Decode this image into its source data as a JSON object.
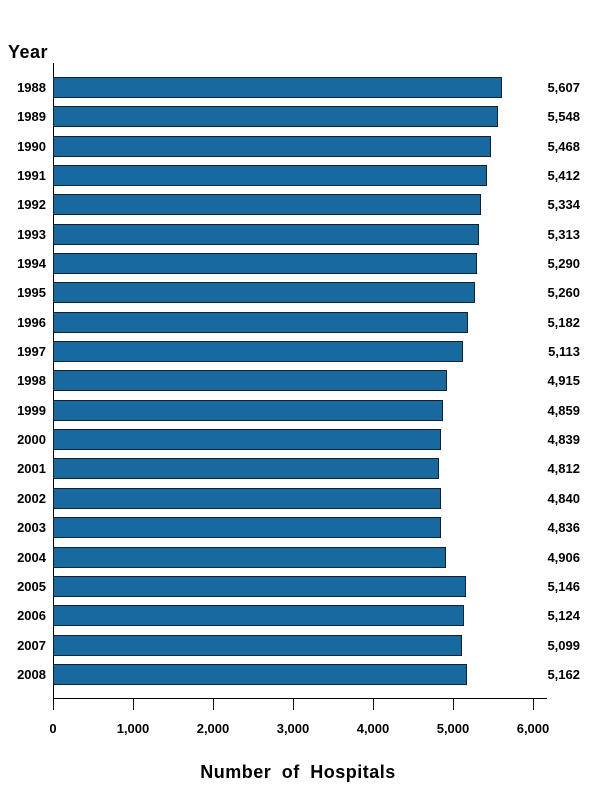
{
  "chart_data": {
    "type": "bar",
    "orientation": "horizontal",
    "y_axis_title": "Year",
    "xlabel": "Number of Hospitals",
    "xlim": [
      0,
      6000
    ],
    "grid": false,
    "legend": "none",
    "bar_color": "#17699E",
    "bar_border_color": "#0C2138",
    "axis_color": "#000000",
    "x_ticks": [
      {
        "value": 0,
        "label": "0"
      },
      {
        "value": 1000,
        "label": "1,000"
      },
      {
        "value": 2000,
        "label": "2,000"
      },
      {
        "value": 3000,
        "label": "3,000"
      },
      {
        "value": 4000,
        "label": "4,000"
      },
      {
        "value": 5000,
        "label": "5,000"
      },
      {
        "value": 6000,
        "label": "6,000"
      }
    ],
    "rows": [
      {
        "year": "1988",
        "value": 5607,
        "label": "5,607"
      },
      {
        "year": "1989",
        "value": 5548,
        "label": "5,548"
      },
      {
        "year": "1990",
        "value": 5468,
        "label": "5,468"
      },
      {
        "year": "1991",
        "value": 5412,
        "label": "5,412"
      },
      {
        "year": "1992",
        "value": 5334,
        "label": "5,334"
      },
      {
        "year": "1993",
        "value": 5313,
        "label": "5,313"
      },
      {
        "year": "1994",
        "value": 5290,
        "label": "5,290"
      },
      {
        "year": "1995",
        "value": 5260,
        "label": "5,260"
      },
      {
        "year": "1996",
        "value": 5182,
        "label": "5,182"
      },
      {
        "year": "1997",
        "value": 5113,
        "label": "5,113"
      },
      {
        "year": "1998",
        "value": 4915,
        "label": "4,915"
      },
      {
        "year": "1999",
        "value": 4859,
        "label": "4,859"
      },
      {
        "year": "2000",
        "value": 4839,
        "label": "4,839"
      },
      {
        "year": "2001",
        "value": 4812,
        "label": "4,812"
      },
      {
        "year": "2002",
        "value": 4840,
        "label": "4,840"
      },
      {
        "year": "2003",
        "value": 4836,
        "label": "4,836"
      },
      {
        "year": "2004",
        "value": 4906,
        "label": "4,906"
      },
      {
        "year": "2005",
        "value": 5146,
        "label": "5,146"
      },
      {
        "year": "2006",
        "value": 5124,
        "label": "5,124"
      },
      {
        "year": "2007",
        "value": 5099,
        "label": "5,099"
      },
      {
        "year": "2008",
        "value": 5162,
        "label": "5,162"
      }
    ]
  }
}
